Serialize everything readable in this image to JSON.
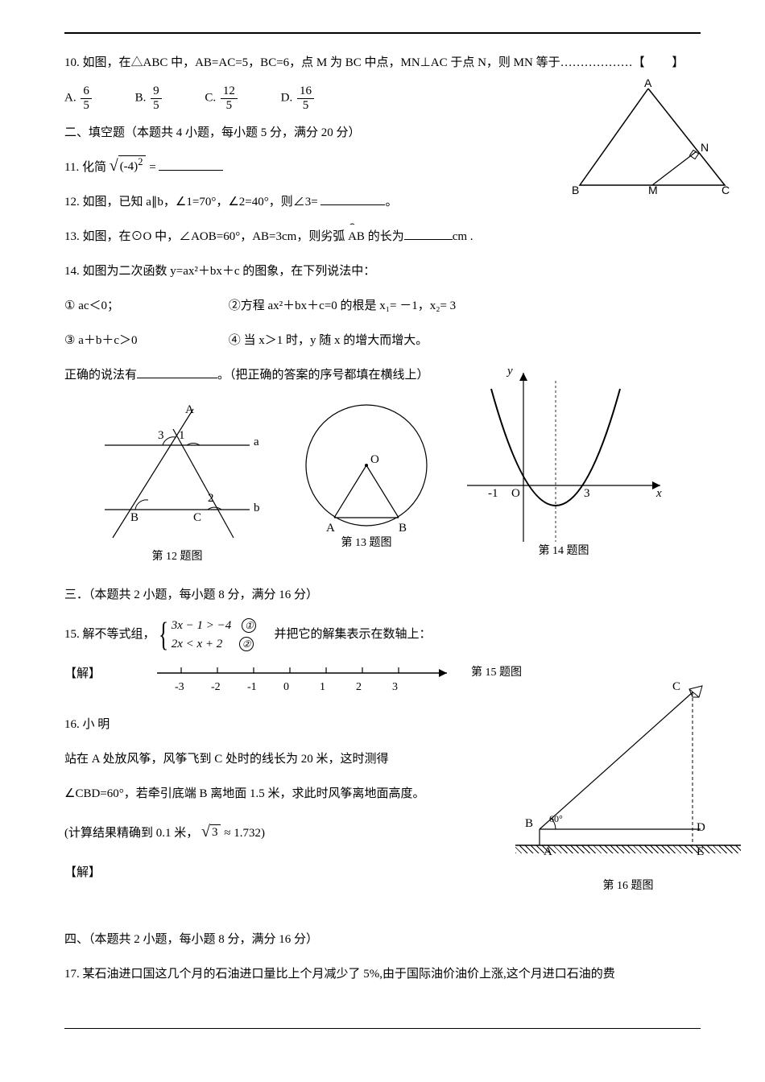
{
  "q10": {
    "stem_a": "10. 如图，在△ABC 中，AB=AC=5，BC=6，点 M 为 BC 中点，MN⊥AC 于点 N，则 MN 等于",
    "dots": "………………",
    "bracket_l": "【",
    "bracket_r": "】",
    "A": "A.",
    "B": "B.",
    "C": "C.",
    "D": "D.",
    "fracA_n": "6",
    "fracA_d": "5",
    "fracB_n": "9",
    "fracB_d": "5",
    "fracC_n": "12",
    "fracC_d": "5",
    "fracD_n": "16",
    "fracD_d": "5",
    "labels": {
      "A": "A",
      "B": "B",
      "C": "C",
      "M": "M",
      "N": "N"
    }
  },
  "section2": "二、填空题（本题共 4 小题，每小题 5 分，满分 20 分）",
  "q11": {
    "pre": "11.  化简",
    "rad_inner": "(-4)",
    "rad_exp": "2",
    "eq": " =",
    "blank": " "
  },
  "q12": "12. 如图，已知 a∥b，∠1=70°，∠2=40°，则∠3= ",
  "q12_end": "。",
  "q13": {
    "a": "13. 如图，在⊙O 中，∠AOB=60°，AB=3cm，则劣弧 ",
    "arc1": "⌢",
    "arc2": "AB",
    "b": " 的长为",
    "c": "cm ."
  },
  "q14": {
    "head": "14. 如图为二次函数 y=ax²＋bx＋c 的图象，在下列说法中：",
    "l1a": "① ac＜0；",
    "l1b": "②方程 ax²＋bx＋c=0 的根是 x₁= －1，x₂= 3",
    "l2a": "③ a＋b＋c＞0",
    "l2b": "④ 当 x＞1 时，y 随 x 的增大而增大。",
    "tail_a": "正确的说法有",
    "tail_b": "。（把正确的答案的序号都填在横线上）"
  },
  "figs": {
    "f12": {
      "A": "A",
      "B": "B",
      "C": "C",
      "a": "a",
      "b": "b",
      "one": "1",
      "two": "2",
      "three": "3",
      "cap": "第 12 题图"
    },
    "f13": {
      "O": "O",
      "A": "A",
      "B": "B",
      "cap": "第 13 题图"
    },
    "f14": {
      "neg1": "-1",
      "three": "3",
      "x": "x",
      "y": "y",
      "O": "O",
      "cap": "第 14 题图"
    }
  },
  "section3": "三．（本题共 2 小题，每小题 8 分，满分 16 分）",
  "q15": {
    "pre": "15.  解不等式组，",
    "line1": "3x − 1 > −4",
    "line2": "2x < x + 2",
    "c1": "①",
    "c2": "②",
    "post": "并把它的解集表示在数轴上：",
    "solve": "【解】",
    "numline_labels": [
      "-3",
      "-2",
      "-1",
      "0",
      "1",
      "2",
      "3"
    ],
    "cap": "第 15 题图"
  },
  "q16": {
    "l1": "16. 小 明",
    "l2": "站在 A 处放风筝，风筝飞到 C 处时的线长为 20 米，这时测得",
    "l3": "∠CBD=60°，若牵引底端 B 离地面 1.5 米，求此时风筝离地面高度。",
    "l4a": "(计算结果精确到 0.1 米，",
    "l4b_rad": "√",
    "l4b_in": "3",
    "l4c": " ≈ 1.732",
    "l4d": ")",
    "solve": "【解】",
    "labels": {
      "C": "C",
      "kite": "⚡",
      "B": "B",
      "D": "D",
      "A": "A",
      "E": "E",
      "ang": "60°"
    },
    "cap": "第 16 题图"
  },
  "section4": "四、（本题共 2 小题，每小题 8 分，满分 16 分）",
  "q17": "17. 某石油进口国这几个月的石油进口量比上个月减少了 5%,由于国际油价油价上涨,这个月进口石油的费"
}
